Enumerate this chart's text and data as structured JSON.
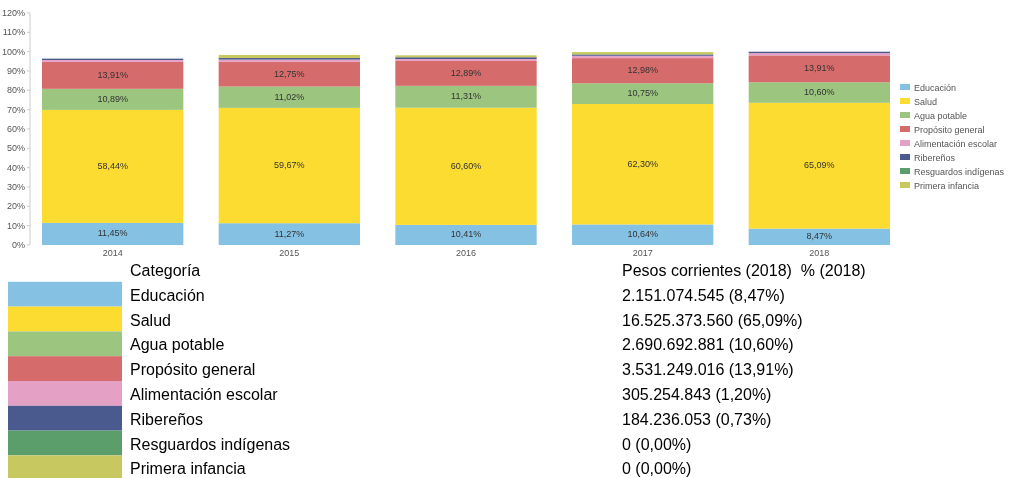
{
  "chart_data": {
    "type": "bar",
    "stacked": true,
    "categories": [
      "2014",
      "2015",
      "2016",
      "2017",
      "2018"
    ],
    "ylim": [
      0,
      120
    ],
    "yticks": [
      {
        "value": 0,
        "label": "0%"
      },
      {
        "value": 10,
        "label": "10%"
      },
      {
        "value": 20,
        "label": "20%"
      },
      {
        "value": 30,
        "label": "30%"
      },
      {
        "value": 40,
        "label": "40%"
      },
      {
        "value": 50,
        "label": "50%"
      },
      {
        "value": 60,
        "label": "60%"
      },
      {
        "value": 70,
        "label": "70%"
      },
      {
        "value": 80,
        "label": "80%"
      },
      {
        "value": 90,
        "label": "90%"
      },
      {
        "value": 100,
        "label": "100%"
      },
      {
        "value": 110,
        "label": "110%"
      },
      {
        "value": 120,
        "label": "120%"
      }
    ],
    "legend": "right",
    "grid": false,
    "series": [
      {
        "name": "Educación",
        "color": "#85c1e3",
        "values": [
          11.45,
          11.27,
          10.41,
          10.64,
          8.47
        ],
        "value_labels": [
          "11,45%",
          "11,27%",
          "10,41%",
          "10,64%",
          "8,47%"
        ]
      },
      {
        "name": "Salud",
        "color": "#fcdc30",
        "values": [
          58.44,
          59.67,
          60.6,
          62.3,
          65.09
        ],
        "value_labels": [
          "58,44%",
          "59,67%",
          "60,60%",
          "62,30%",
          "65,09%"
        ]
      },
      {
        "name": "Agua potable",
        "color": "#9cc57f",
        "values": [
          10.89,
          11.02,
          11.31,
          10.75,
          10.6
        ],
        "value_labels": [
          "10,89%",
          "11,02%",
          "11,31%",
          "10,75%",
          "10,60%"
        ]
      },
      {
        "name": "Propósito general",
        "color": "#d66b6b",
        "values": [
          13.91,
          12.75,
          12.89,
          12.98,
          13.91
        ],
        "value_labels": [
          "13,91%",
          "12,75%",
          "12,89%",
          "12,98%",
          "13,91%"
        ]
      },
      {
        "name": "Alimentación escolar",
        "color": "#e5a0c6",
        "values": [
          1.0,
          1.2,
          1.0,
          1.2,
          1.2
        ]
      },
      {
        "name": "Ribereños",
        "color": "#4a5a8f",
        "values": [
          0.7,
          0.8,
          0.9,
          0.7,
          0.7
        ]
      },
      {
        "name": "Resguardos indígenas",
        "color": "#5b9e6b",
        "values": [
          0,
          0,
          0,
          0,
          0
        ]
      },
      {
        "name": "Primera infancia",
        "color": "#c8c860",
        "values": [
          0,
          1.6,
          1.0,
          1.2,
          0
        ]
      }
    ],
    "annotations": [
      "Categoría",
      "Pesos corrientes (2018)  % (2018)",
      "2.151.074.545 (8,47%)",
      "16.525.373.560 (65,09%)",
      "2.690.692.881 (10,60%)",
      "3.531.249.016 (13,91%)",
      "305.254.843 (1,20%)",
      "184.236.053 (0,73%)",
      "0 (0,00%)",
      "0 (0,00%)"
    ]
  }
}
